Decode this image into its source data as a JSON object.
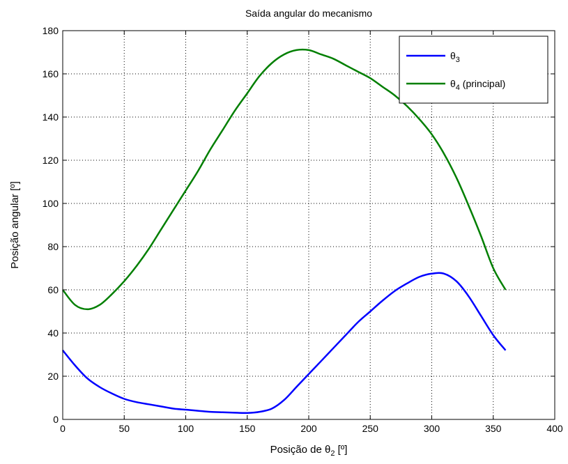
{
  "chart_data": {
    "type": "line",
    "title": "Saída angular do mecanismo",
    "xlabel": {
      "prefix": "Posição de θ",
      "sub": "2",
      "suffix": " [º]"
    },
    "ylabel": "Posição angular [º]",
    "xlim": [
      0,
      400
    ],
    "ylim": [
      0,
      180
    ],
    "xticks": [
      0,
      50,
      100,
      150,
      200,
      250,
      300,
      350,
      400
    ],
    "yticks": [
      0,
      20,
      40,
      60,
      80,
      100,
      120,
      140,
      160,
      180
    ],
    "grid": true,
    "legend_position": "top-right",
    "series": [
      {
        "name": {
          "base": "θ",
          "sub": "3",
          "suffix": ""
        },
        "color": "#0000ff",
        "x": [
          0,
          10,
          20,
          30,
          40,
          50,
          60,
          70,
          80,
          90,
          100,
          110,
          120,
          130,
          140,
          150,
          160,
          170,
          180,
          190,
          200,
          210,
          220,
          230,
          240,
          250,
          260,
          270,
          280,
          290,
          300,
          310,
          320,
          330,
          340,
          350,
          360
        ],
        "y": [
          32,
          25,
          19,
          15,
          12,
          9.5,
          8,
          7,
          6,
          5,
          4.5,
          4,
          3.5,
          3.3,
          3.1,
          3,
          3.5,
          5,
          9,
          15,
          21,
          27,
          33,
          39,
          45,
          50,
          55,
          59.5,
          63,
          66,
          67.5,
          67.5,
          64,
          57,
          48,
          39,
          32
        ]
      },
      {
        "name": {
          "base": "θ",
          "sub": "4",
          "suffix": " (principal)"
        },
        "color": "#007f00",
        "x": [
          0,
          10,
          20,
          30,
          40,
          50,
          60,
          70,
          80,
          90,
          100,
          110,
          120,
          130,
          140,
          150,
          160,
          170,
          180,
          190,
          200,
          210,
          220,
          230,
          240,
          250,
          260,
          270,
          280,
          290,
          300,
          310,
          320,
          330,
          340,
          350,
          360
        ],
        "y": [
          60,
          53,
          51,
          53,
          58,
          64,
          71,
          79,
          88,
          97,
          106,
          115,
          125,
          134,
          143,
          151,
          159,
          165,
          169,
          171,
          171,
          169,
          167,
          164,
          161,
          158,
          154,
          150,
          145,
          139,
          132,
          123,
          112,
          99,
          85,
          70,
          60
        ]
      }
    ]
  }
}
